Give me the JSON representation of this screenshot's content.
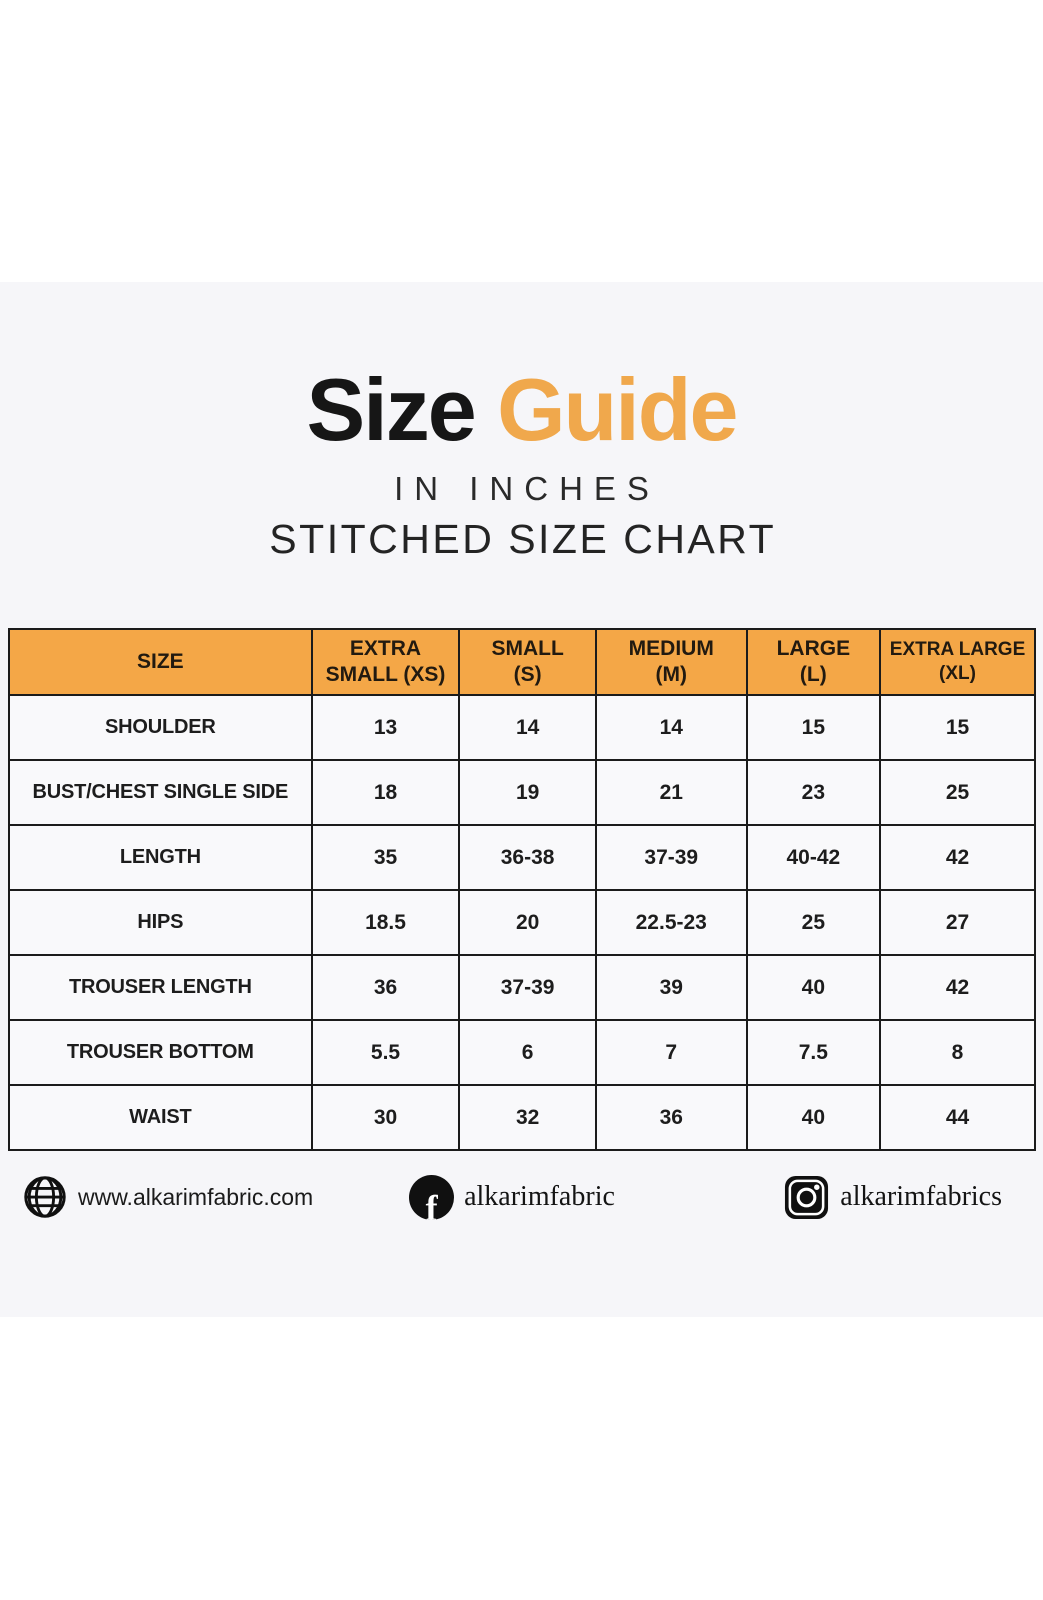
{
  "header": {
    "title_black": "Size",
    "title_orange": "Guide",
    "subtitle_inches": "IN INCHES",
    "subtitle_stitched": "STITCHED SIZE CHART"
  },
  "colors": {
    "accent_orange_title": "#f0a84c",
    "accent_orange_header": "#f4a747",
    "band_background": "#f6f6f9",
    "table_border": "#1b1b1b",
    "text_dark": "#1d1d1d"
  },
  "chart_data": {
    "type": "table",
    "title": "Size Guide",
    "subtitle": "IN INCHES / STITCHED SIZE CHART",
    "columns": [
      "SIZE",
      "EXTRA\nSMALL (XS)",
      "SMALL\n(S)",
      "MEDIUM\n(M)",
      "LARGE\n(L)",
      "EXTRA LARGE\n(XL)"
    ],
    "rows": [
      {
        "label": "SHOULDER",
        "values": [
          "13",
          "14",
          "14",
          "15",
          "15"
        ]
      },
      {
        "label": "BUST/CHEST SINGLE SIDE",
        "values": [
          "18",
          "19",
          "21",
          "23",
          "25"
        ]
      },
      {
        "label": "LENGTH",
        "values": [
          "35",
          "36-38",
          "37-39",
          "40-42",
          "42"
        ]
      },
      {
        "label": "HIPS",
        "values": [
          "18.5",
          "20",
          "22.5-23",
          "25",
          "27"
        ]
      },
      {
        "label": "TROUSER LENGTH",
        "values": [
          "36",
          "37-39",
          "39",
          "40",
          "42"
        ]
      },
      {
        "label": "TROUSER BOTTOM",
        "values": [
          "5.5",
          "6",
          "7",
          "7.5",
          "8"
        ]
      },
      {
        "label": "WAIST",
        "values": [
          "30",
          "32",
          "36",
          "40",
          "44"
        ]
      }
    ]
  },
  "footer": {
    "website": "www.alkarimfabric.com",
    "facebook": "alkarimfabric",
    "instagram": "alkarimfabrics"
  },
  "icons": {
    "website": {
      "name": "globe-icon",
      "glyph": ""
    },
    "facebook": {
      "name": "facebook-icon",
      "glyph": "f"
    },
    "instagram": {
      "name": "instagram-icon",
      "glyph": ""
    }
  }
}
